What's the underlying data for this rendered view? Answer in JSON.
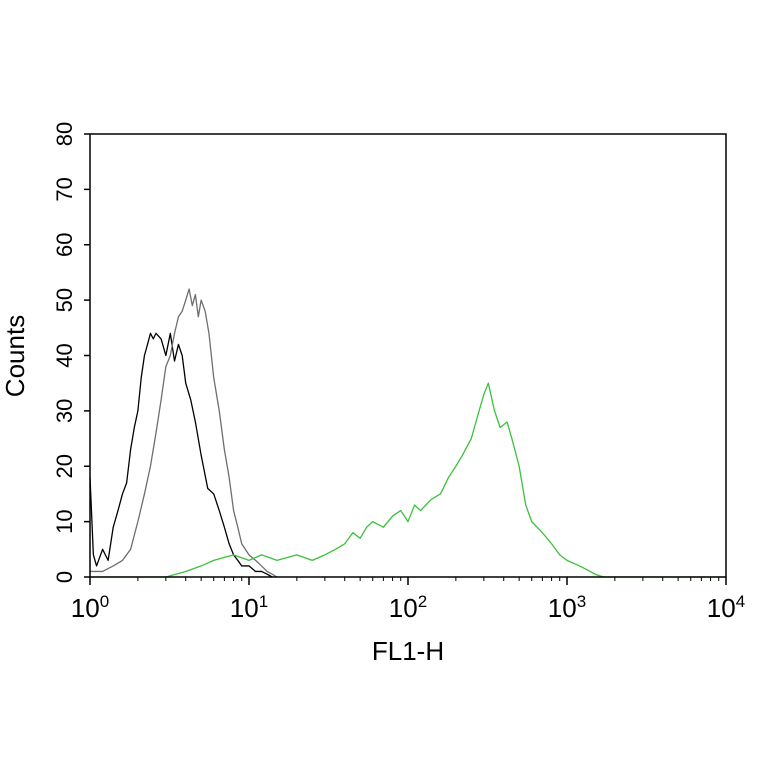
{
  "chart_data": {
    "type": "line",
    "title": "",
    "xlabel": "FL1-H",
    "ylabel": "Counts",
    "x_scale": "log",
    "xlim": [
      1,
      10000
    ],
    "ylim": [
      0,
      80
    ],
    "grid": false,
    "x_ticks": [
      {
        "value": 1,
        "base": "10",
        "exp": "0"
      },
      {
        "value": 10,
        "base": "10",
        "exp": "1"
      },
      {
        "value": 100,
        "base": "10",
        "exp": "2"
      },
      {
        "value": 1000,
        "base": "10",
        "exp": "3"
      },
      {
        "value": 10000,
        "base": "10",
        "exp": "4"
      }
    ],
    "y_ticks": [
      "0",
      "10",
      "20",
      "30",
      "40",
      "50",
      "60",
      "70",
      "80"
    ],
    "series": [
      {
        "color": "#000000",
        "x": [
          1.0,
          1.05,
          1.1,
          1.2,
          1.3,
          1.4,
          1.5,
          1.6,
          1.7,
          1.8,
          1.9,
          2.0,
          2.1,
          2.2,
          2.3,
          2.4,
          2.5,
          2.6,
          2.8,
          3.0,
          3.2,
          3.4,
          3.6,
          3.8,
          4.0,
          4.3,
          4.6,
          5.0,
          5.5,
          6.0,
          6.5,
          7.0,
          7.5,
          8.0,
          8.5,
          9.0,
          10.0,
          11.0,
          12.0,
          13.0,
          14.0
        ],
        "y": [
          18,
          4,
          2,
          5,
          3,
          9,
          12,
          15,
          17,
          23,
          27,
          30,
          36,
          40,
          42,
          44,
          43,
          44,
          43,
          40,
          44,
          39,
          42,
          40,
          35,
          32,
          28,
          22,
          16,
          15,
          12,
          9,
          6,
          4,
          3,
          2,
          2,
          1,
          1,
          0.5,
          0
        ]
      },
      {
        "color": "#6e6e6e",
        "x": [
          1.0,
          1.2,
          1.4,
          1.6,
          1.8,
          2.0,
          2.2,
          2.4,
          2.6,
          2.8,
          3.0,
          3.2,
          3.4,
          3.6,
          3.8,
          4.0,
          4.2,
          4.4,
          4.6,
          4.8,
          5.0,
          5.3,
          5.6,
          6.0,
          6.5,
          7.0,
          7.5,
          8.0,
          8.5,
          9.0,
          10.0,
          11.0,
          12.0,
          13.0,
          14.0,
          15.0
        ],
        "y": [
          1,
          1,
          2,
          3,
          5,
          10,
          15,
          20,
          26,
          32,
          38,
          40,
          44,
          47,
          48,
          50,
          52,
          49,
          51,
          47,
          50,
          48,
          44,
          36,
          30,
          23,
          18,
          12,
          9,
          6,
          4,
          3,
          2,
          1,
          0.5,
          0
        ]
      },
      {
        "color": "#3cc03c",
        "x": [
          1.0,
          3.0,
          4.0,
          5.0,
          6.0,
          8.0,
          10.0,
          12.0,
          15.0,
          20.0,
          25.0,
          30.0,
          35.0,
          40.0,
          45.0,
          50.0,
          55.0,
          60.0,
          70.0,
          80.0,
          90.0,
          100.0,
          110.0,
          120.0,
          140.0,
          160.0,
          180.0,
          200.0,
          220.0,
          250.0,
          280.0,
          300.0,
          320.0,
          350.0,
          380.0,
          420.0,
          450.0,
          500.0,
          550.0,
          600.0,
          700.0,
          800.0,
          900.0,
          1000.0,
          1200.0,
          1400.0,
          1500.0,
          1700.0,
          2000.0,
          10000.0
        ],
        "y": [
          0,
          0,
          1,
          2,
          3,
          4,
          3,
          4,
          3,
          4,
          3,
          4,
          5,
          6,
          8,
          7,
          9,
          10,
          9,
          11,
          12,
          10,
          13,
          12,
          14,
          15,
          18,
          20,
          22,
          25,
          30,
          33,
          35,
          30,
          27,
          28,
          25,
          20,
          13,
          10,
          8,
          6,
          4,
          3,
          2,
          1,
          0.5,
          0,
          0,
          0
        ]
      }
    ]
  }
}
